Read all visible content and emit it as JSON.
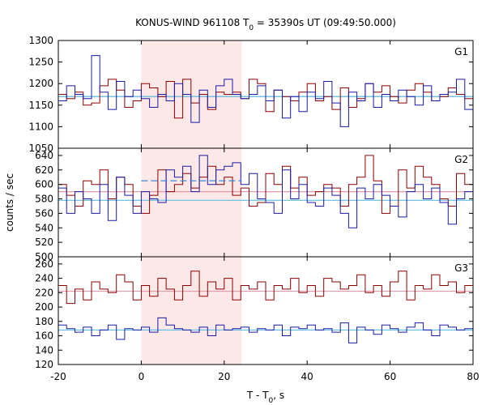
{
  "chart_data": {
    "type": "line",
    "title": {
      "prefix": "KONUS-WIND 961108 T",
      "sub": "0",
      "suffix": " = 35390s UT (09:49:50.000)"
    },
    "xlabel": {
      "prefix": "T - T",
      "sub": "0",
      "suffix": ", s"
    },
    "ylabel": "counts / sec",
    "xlim": [
      -20,
      80
    ],
    "xticks": [
      -20,
      0,
      20,
      40,
      60,
      80
    ],
    "highlight_interval": [
      0,
      24.2
    ],
    "highlight_color": "#fde8e8",
    "bin_width": 2.0,
    "bin_start": -20,
    "colors": {
      "red_series": "#8b0000",
      "blue_series": "#1a1aa6",
      "red_mean": "#e39aa8",
      "blue_mean": "#5fbfe0",
      "blue_segment": "#2c7fd8"
    },
    "panels": [
      {
        "label": "G1",
        "ylim": [
          1050,
          1300
        ],
        "yticks": [
          1050,
          1100,
          1150,
          1200,
          1250,
          1300
        ],
        "means": {
          "red": 1170,
          "blue": 1170
        },
        "red": [
          1175,
          1165,
          1180,
          1150,
          1155,
          1195,
          1210,
          1185,
          1145,
          1160,
          1200,
          1190,
          1170,
          1205,
          1120,
          1210,
          1155,
          1175,
          1140,
          1180,
          1175,
          1180,
          1165,
          1210,
          1200,
          1135,
          1185,
          1170,
          1160,
          1180,
          1200,
          1160,
          1170,
          1140,
          1190,
          1145,
          1165,
          1200,
          1180,
          1195,
          1170,
          1155,
          1185,
          1200,
          1180,
          1160,
          1170,
          1190,
          1175,
          1165
        ],
        "blue": [
          1160,
          1195,
          1175,
          1165,
          1265,
          1180,
          1140,
          1205,
          1170,
          1185,
          1165,
          1145,
          1175,
          1160,
          1200,
          1175,
          1110,
          1185,
          1145,
          1195,
          1210,
          1175,
          1165,
          1175,
          1195,
          1160,
          1185,
          1120,
          1170,
          1135,
          1180,
          1165,
          1205,
          1155,
          1100,
          1180,
          1160,
          1200,
          1145,
          1175,
          1160,
          1185,
          1170,
          1150,
          1195,
          1160,
          1175,
          1180,
          1210,
          1140
        ]
      },
      {
        "label": "G2",
        "ylim": [
          500,
          650
        ],
        "yticks": [
          500,
          520,
          540,
          560,
          580,
          600,
          620,
          640
        ],
        "means": {
          "red": 590,
          "blue": 578
        },
        "blue_segment": {
          "x": [
            0,
            24.2
          ],
          "y": 605
        },
        "red": [
          600,
          585,
          570,
          605,
          600,
          620,
          580,
          610,
          600,
          570,
          560,
          585,
          620,
          590,
          600,
          615,
          595,
          610,
          625,
          600,
          610,
          585,
          595,
          570,
          575,
          615,
          600,
          625,
          595,
          610,
          585,
          590,
          600,
          595,
          570,
          600,
          610,
          640,
          605,
          560,
          570,
          620,
          595,
          625,
          610,
          600,
          580,
          570,
          615,
          600
        ],
        "blue": [
          595,
          560,
          590,
          580,
          560,
          600,
          550,
          610,
          585,
          560,
          590,
          580,
          575,
          620,
          610,
          625,
          590,
          640,
          600,
          620,
          625,
          630,
          600,
          615,
          580,
          575,
          560,
          620,
          580,
          600,
          575,
          570,
          595,
          585,
          560,
          540,
          595,
          580,
          600,
          585,
          570,
          555,
          590,
          600,
          580,
          595,
          575,
          545,
          580,
          590
        ]
      },
      {
        "label": "G3",
        "ylim": [
          120,
          270
        ],
        "yticks": [
          120,
          140,
          160,
          180,
          200,
          220,
          240,
          260
        ],
        "means": {
          "red": 222,
          "blue": 168
        },
        "red": [
          230,
          205,
          225,
          210,
          235,
          225,
          220,
          245,
          235,
          210,
          230,
          215,
          240,
          225,
          210,
          230,
          250,
          215,
          235,
          225,
          240,
          210,
          230,
          225,
          235,
          210,
          230,
          225,
          240,
          220,
          230,
          215,
          240,
          235,
          225,
          230,
          245,
          220,
          230,
          215,
          235,
          250,
          210,
          230,
          225,
          245,
          230,
          235,
          220,
          230
        ],
        "blue": [
          175,
          170,
          165,
          172,
          160,
          168,
          175,
          155,
          170,
          168,
          172,
          165,
          185,
          175,
          170,
          168,
          165,
          172,
          160,
          175,
          168,
          170,
          172,
          165,
          170,
          168,
          175,
          160,
          172,
          170,
          175,
          168,
          170,
          165,
          178,
          150,
          172,
          168,
          162,
          175,
          170,
          165,
          172,
          178,
          168,
          160,
          175,
          172,
          168,
          170
        ]
      }
    ]
  }
}
